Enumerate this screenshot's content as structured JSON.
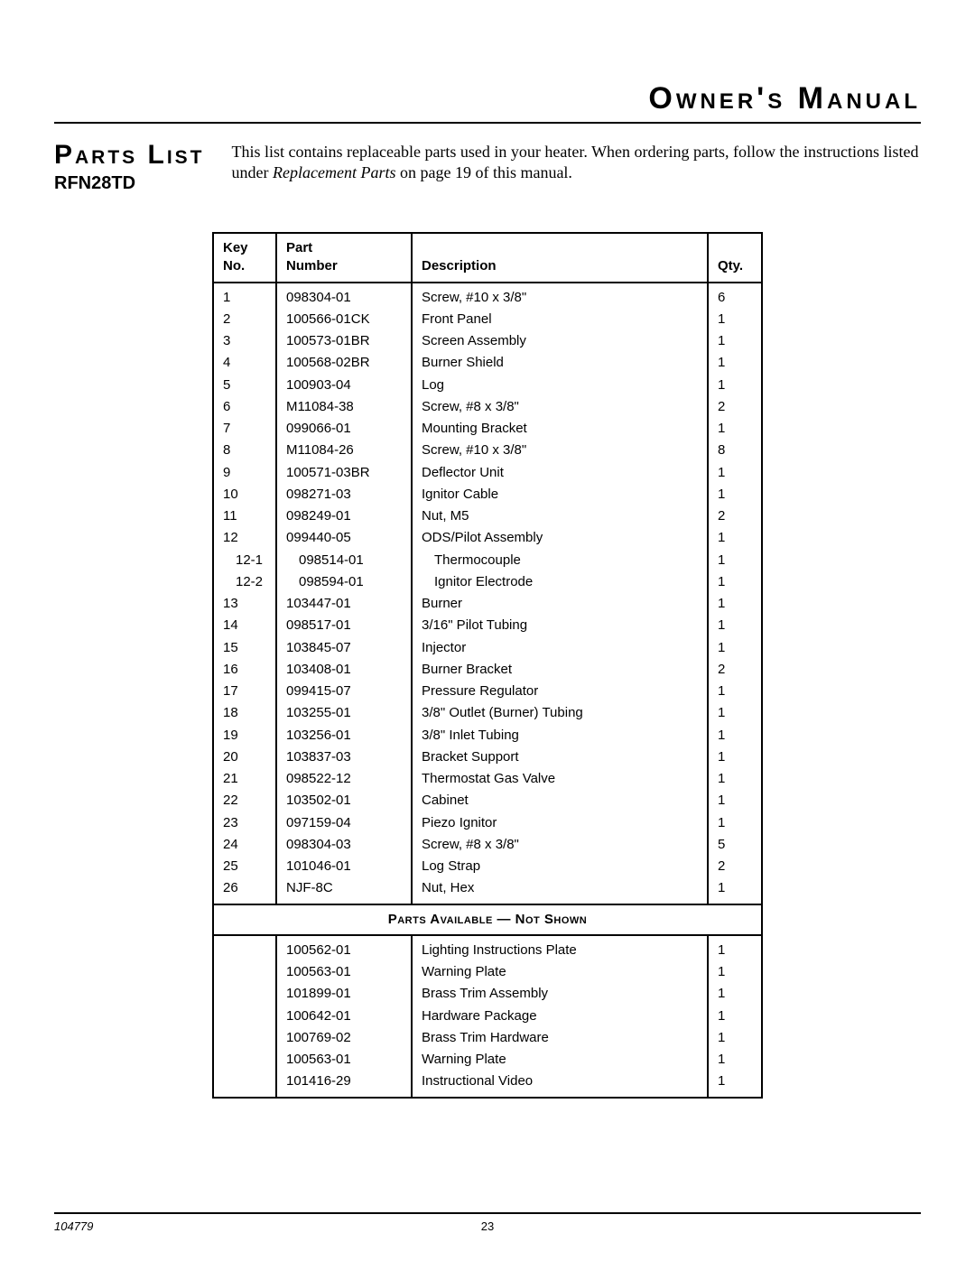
{
  "header": {
    "title": "Owner's Manual"
  },
  "section": {
    "title": "Parts List"
  },
  "intro": {
    "pre": "This list contains replaceable parts used in your heater. When ordering parts, follow the instructions listed under ",
    "ital": "Replacement Parts",
    "post": " on page 19 of this manual."
  },
  "model": "RFN28TD",
  "columns": {
    "key_l1": "Key",
    "key_l2": "No.",
    "part_l1": "Part",
    "part_l2": "Number",
    "desc": "Description",
    "qty": "Qty."
  },
  "sectionLabel": "Parts Available — Not Shown",
  "rows": [
    {
      "key": "1",
      "part": "098304-01",
      "desc": "Screw, #10 x 3/8\"",
      "qty": "6",
      "indent": 0
    },
    {
      "key": "2",
      "part": "100566-01CK",
      "desc": "Front Panel",
      "qty": "1",
      "indent": 0
    },
    {
      "key": "3",
      "part": "100573-01BR",
      "desc": "Screen Assembly",
      "qty": "1",
      "indent": 0
    },
    {
      "key": "4",
      "part": "100568-02BR",
      "desc": "Burner Shield",
      "qty": "1",
      "indent": 0
    },
    {
      "key": "5",
      "part": "100903-04",
      "desc": "Log",
      "qty": "1",
      "indent": 0
    },
    {
      "key": "6",
      "part": "M11084-38",
      "desc": "Screw, #8 x 3/8\"",
      "qty": "2",
      "indent": 0
    },
    {
      "key": "7",
      "part": "099066-01",
      "desc": "Mounting Bracket",
      "qty": "1",
      "indent": 0
    },
    {
      "key": "8",
      "part": "M11084-26",
      "desc": "Screw, #10 x 3/8\"",
      "qty": "8",
      "indent": 0
    },
    {
      "key": "9",
      "part": "100571-03BR",
      "desc": "Deflector Unit",
      "qty": "1",
      "indent": 0
    },
    {
      "key": "10",
      "part": "098271-03",
      "desc": "Ignitor Cable",
      "qty": "1",
      "indent": 0
    },
    {
      "key": "11",
      "part": "098249-01",
      "desc": "Nut, M5",
      "qty": "2",
      "indent": 0
    },
    {
      "key": "12",
      "part": "099440-05",
      "desc": "ODS/Pilot Assembly",
      "qty": "1",
      "indent": 0
    },
    {
      "key": "12-1",
      "part": "098514-01",
      "desc": "Thermocouple",
      "qty": "1",
      "indent": 1
    },
    {
      "key": "12-2",
      "part": "098594-01",
      "desc": "Ignitor Electrode",
      "qty": "1",
      "indent": 1
    },
    {
      "key": "13",
      "part": "103447-01",
      "desc": "Burner",
      "qty": "1",
      "indent": 0
    },
    {
      "key": "14",
      "part": "098517-01",
      "desc": "3/16\" Pilot Tubing",
      "qty": "1",
      "indent": 0
    },
    {
      "key": "15",
      "part": "103845-07",
      "desc": "Injector",
      "qty": "1",
      "indent": 0
    },
    {
      "key": "16",
      "part": "103408-01",
      "desc": "Burner Bracket",
      "qty": "2",
      "indent": 0
    },
    {
      "key": "17",
      "part": "099415-07",
      "desc": "Pressure Regulator",
      "qty": "1",
      "indent": 0
    },
    {
      "key": "18",
      "part": "103255-01",
      "desc": "3/8\" Outlet (Burner) Tubing",
      "qty": "1",
      "indent": 0
    },
    {
      "key": "19",
      "part": "103256-01",
      "desc": "3/8\" Inlet Tubing",
      "qty": "1",
      "indent": 0
    },
    {
      "key": "20",
      "part": "103837-03",
      "desc": "Bracket Support",
      "qty": "1",
      "indent": 0
    },
    {
      "key": "21",
      "part": "098522-12",
      "desc": "Thermostat Gas Valve",
      "qty": "1",
      "indent": 0
    },
    {
      "key": "22",
      "part": "103502-01",
      "desc": "Cabinet",
      "qty": "1",
      "indent": 0
    },
    {
      "key": "23",
      "part": "097159-04",
      "desc": "Piezo Ignitor",
      "qty": "1",
      "indent": 0
    },
    {
      "key": "24",
      "part": "098304-03",
      "desc": "Screw, #8 x 3/8\"",
      "qty": "5",
      "indent": 0
    },
    {
      "key": "25",
      "part": "101046-01",
      "desc": "Log Strap",
      "qty": "2",
      "indent": 0
    },
    {
      "key": "26",
      "part": "NJF-8C",
      "desc": "Nut, Hex",
      "qty": "1",
      "indent": 0
    }
  ],
  "notShown": [
    {
      "part": "100562-01",
      "desc": "Lighting Instructions Plate",
      "qty": "1"
    },
    {
      "part": "100563-01",
      "desc": "Warning Plate",
      "qty": "1"
    },
    {
      "part": "101899-01",
      "desc": "Brass Trim Assembly",
      "qty": "1"
    },
    {
      "part": "100642-01",
      "desc": "Hardware Package",
      "qty": "1"
    },
    {
      "part": "100769-02",
      "desc": "Brass Trim Hardware",
      "qty": "1"
    },
    {
      "part": "100563-01",
      "desc": "Warning Plate",
      "qty": "1"
    },
    {
      "part": "101416-29",
      "desc": "Instructional Video",
      "qty": "1"
    }
  ],
  "footer": {
    "docnum": "104779",
    "pagenum": "23"
  }
}
